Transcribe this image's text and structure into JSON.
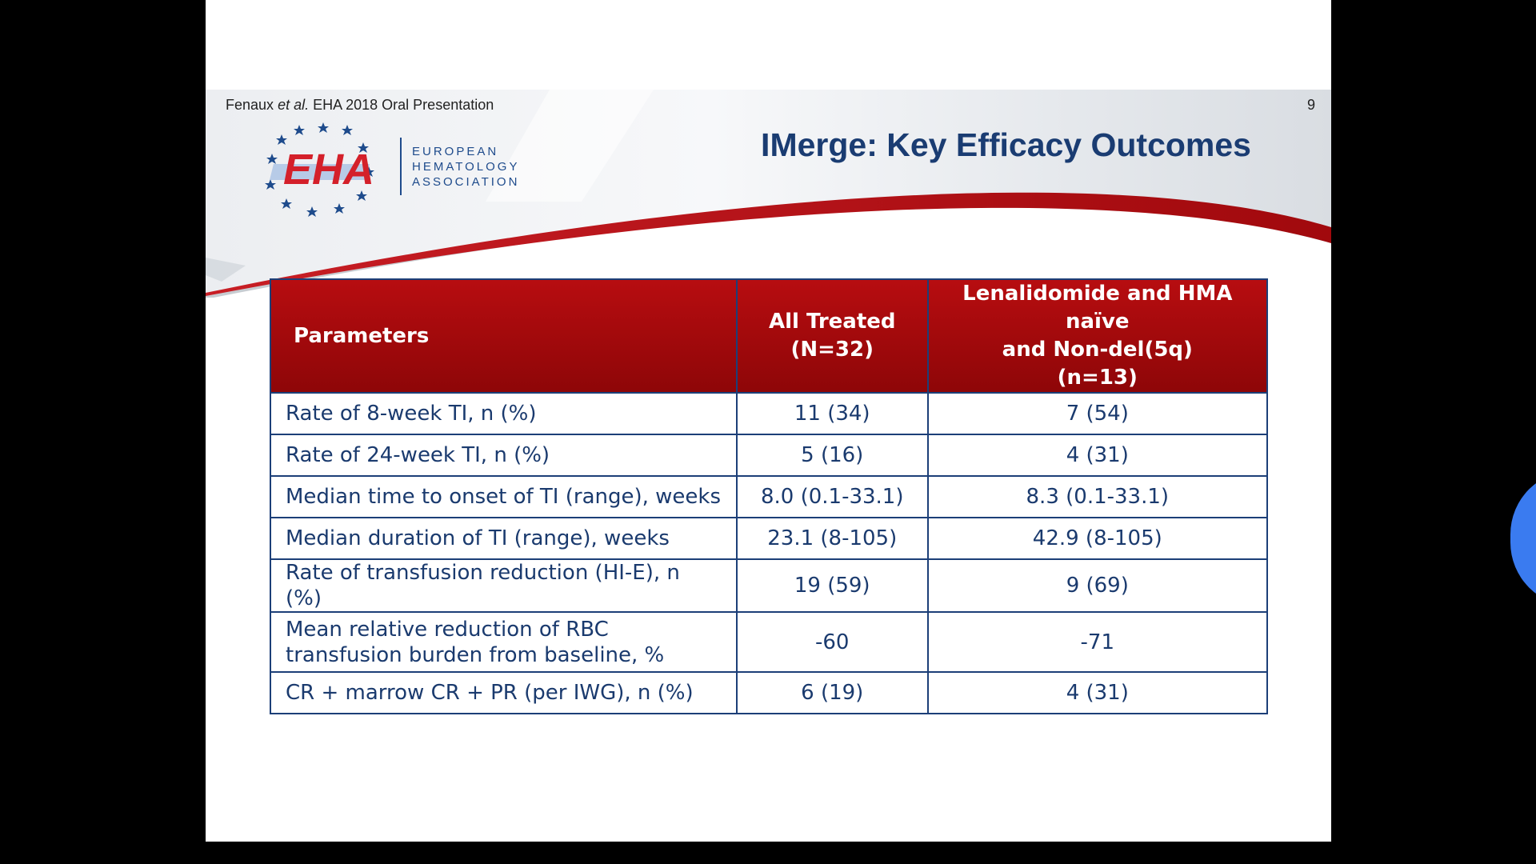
{
  "header": {
    "citation_author": "Fenaux",
    "citation_etal": "et al.",
    "citation_rest": "EHA 2018 Oral Presentation",
    "slide_number": "9",
    "title": "IMerge: Key Efficacy Outcomes"
  },
  "logo": {
    "mark": "EHA",
    "line1": "EUROPEAN",
    "line2": "HEMATOLOGY",
    "line3": "ASSOCIATION"
  },
  "table": {
    "headers": {
      "param": "Parameters",
      "all_line1": "All Treated",
      "all_line2": "(N=32)",
      "sub_line1": "Lenalidomide and HMA naïve",
      "sub_line2": "and Non-del(5q)",
      "sub_line3": "(n=13)"
    },
    "rows": [
      {
        "param": "Rate of 8-week TI, n (%)",
        "all": "11 (34)",
        "sub": "7 (54)"
      },
      {
        "param": "Rate of 24-week TI, n (%)",
        "all": "5 (16)",
        "sub": "4 (31)"
      },
      {
        "param": "Median time to onset of TI (range), weeks",
        "all": "8.0 (0.1-33.1)",
        "sub": "8.3 (0.1-33.1)"
      },
      {
        "param": "Median duration of TI (range), weeks",
        "all": "23.1 (8-105)",
        "sub": "42.9 (8-105)"
      },
      {
        "param": "Rate of transfusion reduction (HI-E), n (%)",
        "all": "19 (59)",
        "sub": "9 (69)"
      },
      {
        "param_line1": "Mean relative reduction of RBC",
        "param_line2": "transfusion burden from baseline, %",
        "all": "-60",
        "sub": "-71"
      },
      {
        "param": "CR + marrow CR + PR (per IWG), n (%)",
        "all": "6 (19)",
        "sub": "4 (31)"
      }
    ]
  },
  "colors": {
    "header_red": "#b70d10",
    "title_blue": "#1a3c72",
    "text_blue": "#1a3a6e",
    "border_blue": "#1c3f78"
  }
}
